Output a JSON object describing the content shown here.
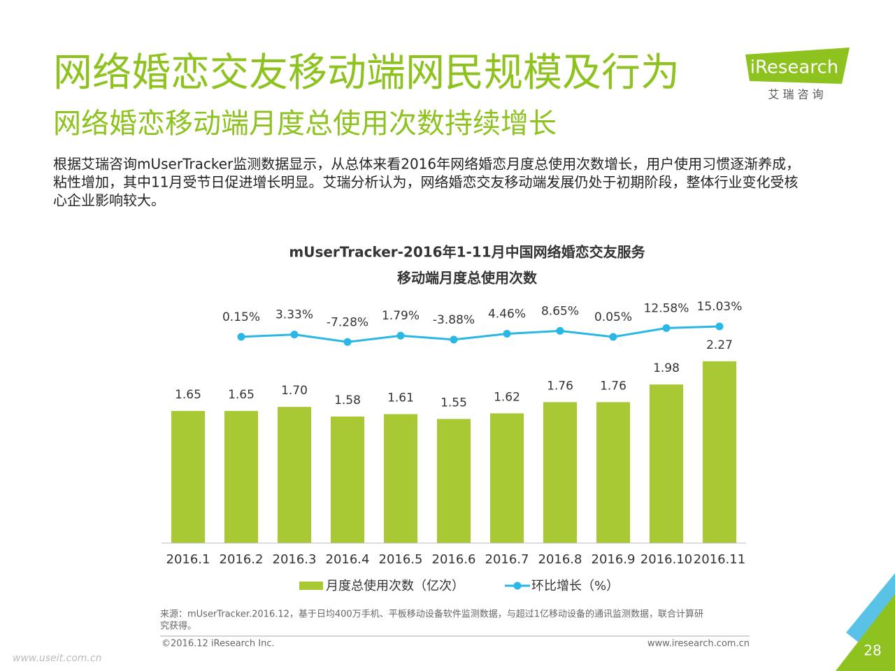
{
  "page": {
    "title": "网络婚恋交友移动端网民规模及行为",
    "subtitle": "网络婚恋移动端月度总使用次数持续增长",
    "description": [
      "根据艾瑞咨询mUserTracker监测数据显示，从总体来看2016年网络婚恋月度总使用次数增长，用户使用习惯逐渐养成，",
      "粘性增加，其中11月受节日促进增长明显。艾瑞分析认为，网络婚恋交友移动端发展仍处于初期阶段，整体行业变化受核",
      "心企业影响较大。"
    ],
    "logo": "iResearch",
    "logo_sub": "艾  瑞  咨  询",
    "source": [
      "来源：mUserTracker.2016.12，基于日均400万手机、平板移动设备软件监测数据，与超过1亿移动设备的通讯监测数据，联合计算研",
      "究获得。"
    ],
    "copyright": "©2016.12 iResearch Inc.",
    "url": "www.iresearch.com.cn",
    "page_number": "28",
    "watermark": "www.useit.com.cn"
  },
  "chart_data": {
    "type": "bar_line",
    "title": [
      "mUserTracker-2016年1-11月中国网络婚恋交友服务",
      "移动端月度总使用次数"
    ],
    "categories": [
      "2016.1",
      "2016.2",
      "2016.3",
      "2016.4",
      "2016.5",
      "2016.6",
      "2016.7",
      "2016.8",
      "2016.9",
      "2016.10",
      "2016.11"
    ],
    "series": [
      {
        "name": "月度总使用次数（亿次）",
        "type": "bar",
        "color": "#a9c934",
        "values": [
          1.65,
          1.65,
          1.7,
          1.58,
          1.61,
          1.55,
          1.62,
          1.76,
          1.76,
          1.98,
          2.27
        ],
        "value_labels": [
          "1.65",
          "1.65",
          "1.70",
          "1.58",
          "1.61",
          "1.55",
          "1.62",
          "1.76",
          "1.76",
          "1.98",
          "2.27"
        ]
      },
      {
        "name": "环比增长（%）",
        "type": "line",
        "color": "#2ab7e5",
        "values": [
          null,
          0.15,
          3.33,
          -7.28,
          1.79,
          -3.88,
          4.46,
          8.65,
          0.05,
          12.58,
          15.03
        ],
        "value_labels": [
          null,
          "0.15%",
          "3.33%",
          "-7.28%",
          "1.79%",
          "-3.88%",
          "4.46%",
          "8.65%",
          "0.05%",
          "12.58%",
          "15.03%"
        ]
      }
    ]
  }
}
